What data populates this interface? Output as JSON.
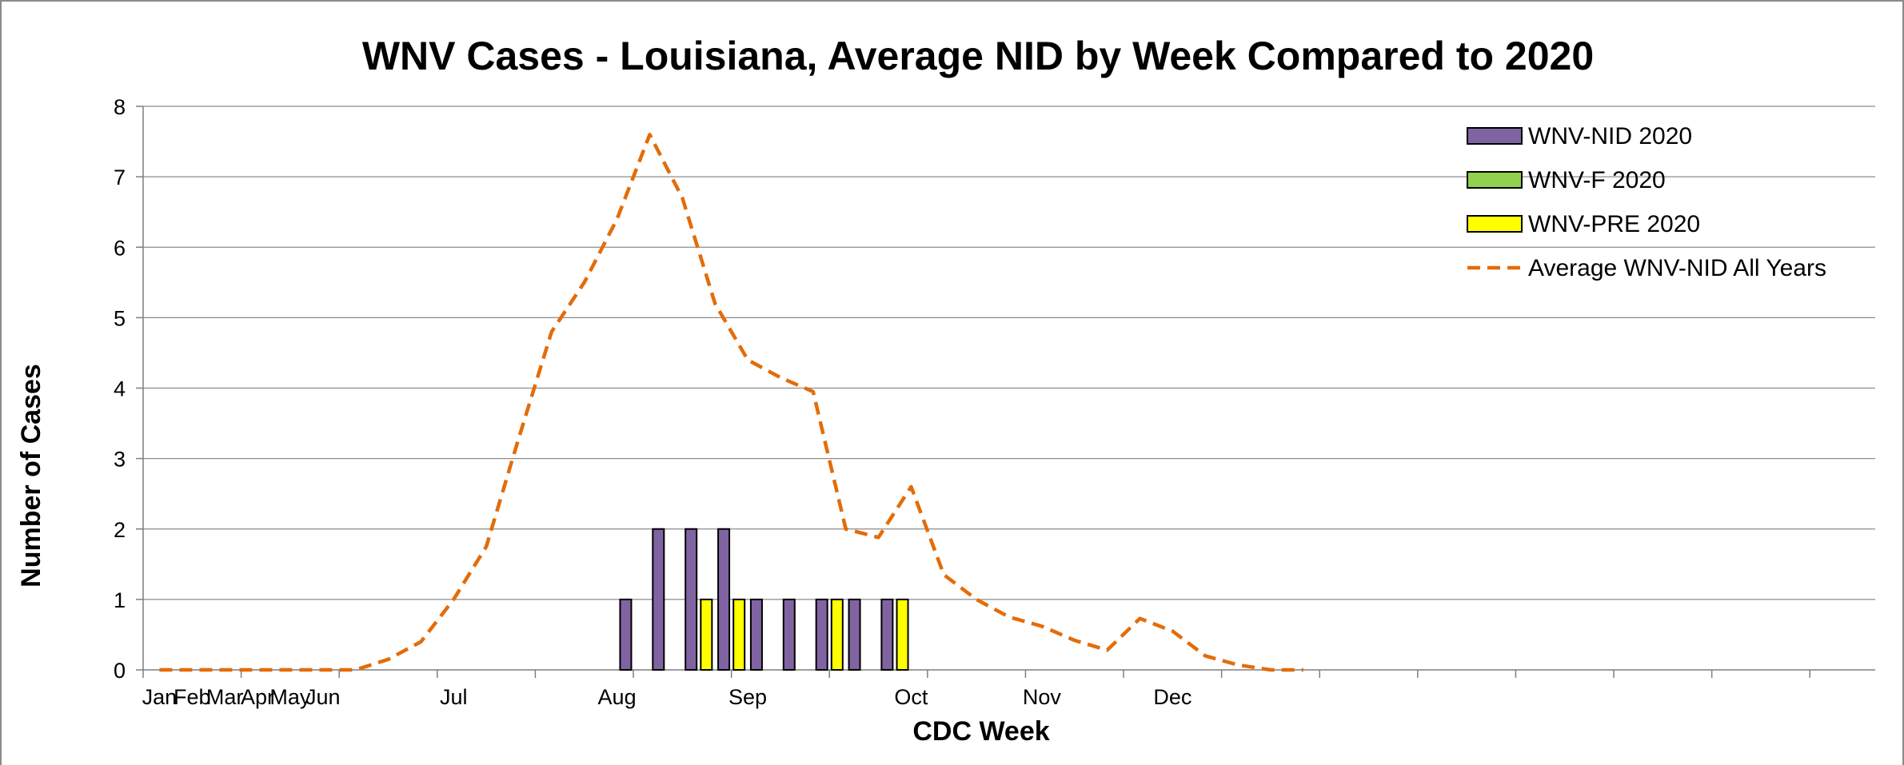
{
  "chart_data": {
    "type": "bar",
    "title": "WNV Cases - Louisiana, Average NID by Week Compared to 2020",
    "xlabel": "CDC Week",
    "ylabel": "Number of  Cases",
    "ylim": [
      0,
      8
    ],
    "yticks": [
      0,
      1,
      2,
      3,
      4,
      5,
      6,
      7,
      8
    ],
    "grid": true,
    "legend_position": "top-right",
    "weeks": 53,
    "month_labels": [
      {
        "label": "Jan",
        "week": 1
      },
      {
        "label": "Feb",
        "week": 2
      },
      {
        "label": "Mar",
        "week": 3
      },
      {
        "label": "Apr",
        "week": 4
      },
      {
        "label": "May",
        "week": 5
      },
      {
        "label": "Jun",
        "week": 6
      },
      {
        "label": "Jul",
        "week": 10
      },
      {
        "label": "Aug",
        "week": 15
      },
      {
        "label": "Sep",
        "week": 19
      },
      {
        "label": "Oct",
        "week": 24
      },
      {
        "label": "Nov",
        "week": 28
      },
      {
        "label": "Dec",
        "week": 32
      }
    ],
    "series": [
      {
        "name": "WNV-NID 2020",
        "type": "bar",
        "color": "#8064a2",
        "points": [
          [
            16,
            1
          ],
          [
            17,
            2
          ],
          [
            18,
            2
          ],
          [
            19,
            2
          ],
          [
            20,
            1
          ],
          [
            21,
            1
          ],
          [
            22,
            1
          ],
          [
            23,
            1
          ],
          [
            24,
            1
          ]
        ]
      },
      {
        "name": "WNV-F 2020",
        "type": "bar",
        "color": "#92d050",
        "points": []
      },
      {
        "name": "WNV-PRE 2020",
        "type": "bar",
        "color": "#ffff00",
        "points": [
          [
            17,
            1
          ],
          [
            18,
            1
          ],
          [
            21,
            1
          ],
          [
            23,
            1
          ]
        ]
      },
      {
        "name": "Average WNV-NID All Years",
        "type": "line",
        "style": "dashed",
        "color": "#e36c09",
        "points": [
          [
            1,
            0
          ],
          [
            2,
            0
          ],
          [
            3,
            0
          ],
          [
            4,
            0
          ],
          [
            5,
            0
          ],
          [
            6,
            0
          ],
          [
            7,
            0
          ],
          [
            8,
            0.15
          ],
          [
            9,
            0.4
          ],
          [
            10,
            1.0
          ],
          [
            11,
            1.75
          ],
          [
            12,
            3.3
          ],
          [
            13,
            4.8
          ],
          [
            14,
            5.5
          ],
          [
            15,
            6.4
          ],
          [
            16,
            7.6
          ],
          [
            17,
            6.7
          ],
          [
            18,
            5.2
          ],
          [
            19,
            4.4
          ],
          [
            20,
            4.15
          ],
          [
            21,
            3.95
          ],
          [
            22,
            2.0
          ],
          [
            23,
            1.88
          ],
          [
            24,
            2.6
          ],
          [
            25,
            1.35
          ],
          [
            26,
            1.0
          ],
          [
            27,
            0.75
          ],
          [
            28,
            0.62
          ],
          [
            29,
            0.42
          ],
          [
            30,
            0.28
          ],
          [
            31,
            0.73
          ],
          [
            32,
            0.55
          ],
          [
            33,
            0.2
          ],
          [
            34,
            0.07
          ],
          [
            35,
            0.0
          ],
          [
            36,
            0.0
          ]
        ]
      }
    ]
  }
}
